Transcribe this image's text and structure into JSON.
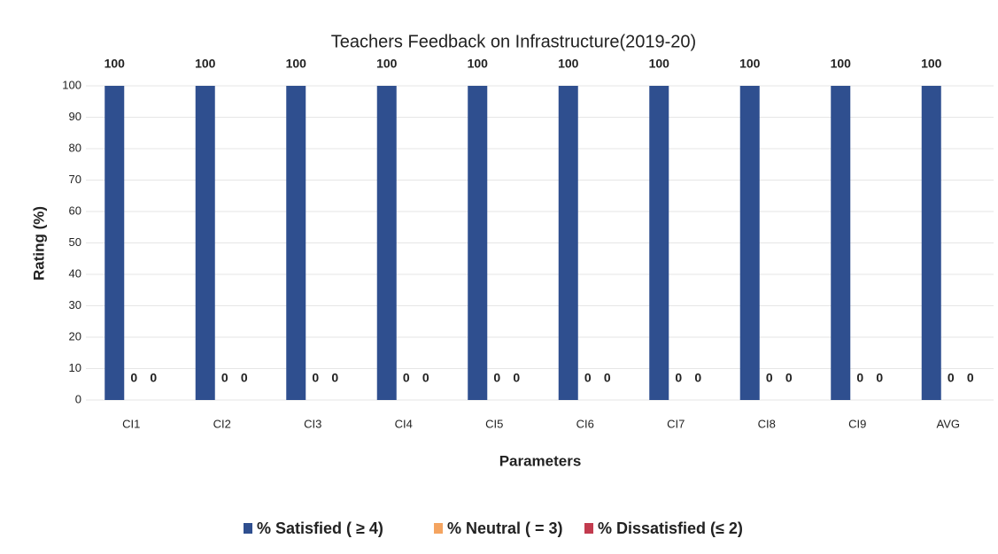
{
  "chart_data": {
    "type": "bar",
    "title": "Teachers Feedback on Infrastructure(2019-20)",
    "x_label": "Parameters",
    "y_label": "Rating (%)",
    "categories": [
      "CI1",
      "CI2",
      "CI3",
      "CI4",
      "CI5",
      "CI6",
      "CI7",
      "CI8",
      "CI9",
      "AVG"
    ],
    "series": [
      {
        "name": "% Satisfied ( ≥ 4)",
        "color": "#2f4f8f",
        "values": [
          100,
          100,
          100,
          100,
          100,
          100,
          100,
          100,
          100,
          100
        ]
      },
      {
        "name": "% Neutral  ( = 3)",
        "color": "#f4a460",
        "values": [
          0,
          0,
          0,
          0,
          0,
          0,
          0,
          0,
          0,
          0
        ]
      },
      {
        "name": "% Dissatisfied (≤ 2)",
        "color": "#c23b4e",
        "values": [
          0,
          0,
          0,
          0,
          0,
          0,
          0,
          0,
          0,
          0
        ]
      }
    ],
    "ylim": [
      0,
      100
    ],
    "yticks": [
      0,
      10,
      20,
      30,
      40,
      50,
      60,
      70,
      80,
      90,
      100
    ],
    "grid": true,
    "legend": "bottom"
  }
}
